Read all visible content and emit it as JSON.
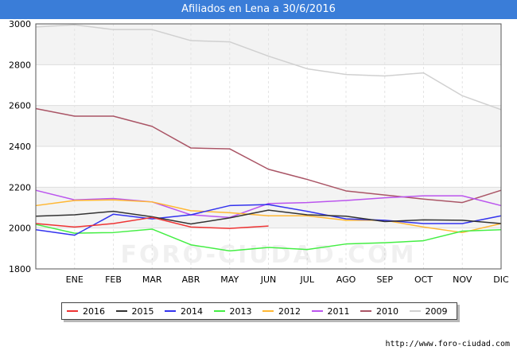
{
  "title": "Afiliados en Lena a 30/6/2016",
  "source": "http://www.foro-ciudad.com",
  "watermark": "FORO-CIUDAD.COM",
  "chart_data": {
    "type": "line",
    "x_ticks": [
      "ENE",
      "FEB",
      "MAR",
      "ABR",
      "MAY",
      "JUN",
      "JUL",
      "AGO",
      "SEP",
      "OCT",
      "NOV",
      "DIC"
    ],
    "y_ticks": [
      1800,
      2000,
      2200,
      2400,
      2600,
      2800,
      3000
    ],
    "ylim": [
      1800,
      3000
    ],
    "grid": true,
    "legend_position": "bottom",
    "series": [
      {
        "name": "2016",
        "color": "#ee3333",
        "values": [
          2022,
          2005,
          2022,
          2052,
          2005,
          1998,
          2010
        ]
      },
      {
        "name": "2015",
        "color": "#333333",
        "values": [
          2058,
          2065,
          2082,
          2055,
          2020,
          2050,
          2088,
          2065,
          2058,
          2032,
          2040,
          2038,
          2022
        ]
      },
      {
        "name": "2014",
        "color": "#3333ee",
        "values": [
          1992,
          1965,
          2068,
          2045,
          2065,
          2110,
          2115,
          2082,
          2045,
          2038,
          2022,
          2022,
          2060
        ]
      },
      {
        "name": "2013",
        "color": "#44ee44",
        "values": [
          2018,
          1975,
          1978,
          1995,
          1918,
          1888,
          1905,
          1895,
          1922,
          1928,
          1938,
          1985,
          1992
        ]
      },
      {
        "name": "2012",
        "color": "#ffb733",
        "values": [
          2110,
          2135,
          2138,
          2128,
          2085,
          2075,
          2060,
          2060,
          2038,
          2038,
          2005,
          1978,
          2022
        ]
      },
      {
        "name": "2011",
        "color": "#bb55ee",
        "values": [
          2185,
          2138,
          2145,
          2128,
          2065,
          2052,
          2120,
          2125,
          2135,
          2148,
          2158,
          2158,
          2110
        ]
      },
      {
        "name": "2010",
        "color": "#aa5566",
        "values": [
          2585,
          2548,
          2548,
          2498,
          2392,
          2388,
          2288,
          2238,
          2182,
          2162,
          2142,
          2125,
          2185
        ]
      },
      {
        "name": "2009",
        "color": "#d0d0d0",
        "values": [
          2985,
          2995,
          2972,
          2972,
          2918,
          2912,
          2842,
          2780,
          2752,
          2745,
          2760,
          2648,
          2580
        ]
      }
    ]
  }
}
